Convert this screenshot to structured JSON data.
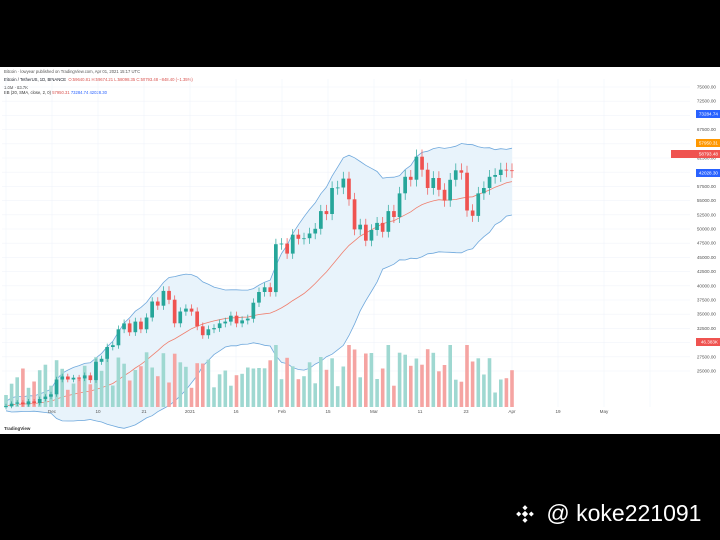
{
  "header": {
    "line1": "Bitcoin · lowyear published on TradingView.com, Apr 01, 2021 15:17 UTC",
    "line2_symbol": "Bitcoin / TetherUS, 1D, BINANCE",
    "line2_ohlc": "O:59640.81  H:59674.21  L:58098.35  C:58793.48  −848.40 (−1.35%)",
    "line2b": "1.0M · 83.7K",
    "line3_label": "BB (20, SMA, close, 2, 0)",
    "line3_basis": "57950.31",
    "line3_upper": "73284.74",
    "line3_lower": "42028.30"
  },
  "axis": {
    "y_ticks": [
      "75000.00",
      "72500.00",
      "70000.00",
      "67500.00",
      "65000.00",
      "62500.00",
      "60000.00",
      "57500.00",
      "55000.00",
      "52500.00",
      "50000.00",
      "47500.00",
      "45000.00",
      "42500.00",
      "40000.00",
      "37500.00",
      "35000.00",
      "32500.00",
      "30000.00",
      "27500.00",
      "25000.00"
    ],
    "x_ticks": [
      "",
      "Dec",
      "10",
      "21",
      "2021",
      "16",
      "Feb",
      "15",
      "Mar",
      "11",
      "23",
      "Apr",
      "19",
      "May",
      ""
    ]
  },
  "price_tags": [
    {
      "text": "73284.74",
      "color": "#2962ff"
    },
    {
      "text": "57950.31",
      "color": "#ff9800"
    },
    {
      "text": "58793.48",
      "color": "#ef5350"
    },
    {
      "text": "42028.30",
      "color": "#2962ff"
    },
    {
      "text": "46.383K",
      "color": "#ef5350"
    }
  ],
  "footer": {
    "logo": "TradingView"
  },
  "watermark": {
    "handle": "@ koke221091"
  },
  "colors": {
    "up": "#26a69a",
    "down": "#ef5350",
    "vol_up": "#9fd8d1",
    "vol_down": "#f5a4a2",
    "band": "#6fa8dc",
    "band_fill": "#e8f3fb",
    "basis": "#ef7f6e"
  },
  "chart_data": {
    "type": "candlestick",
    "series_name": "BTCUSDT 1D",
    "ylim": [
      25000,
      77500
    ],
    "approx_closes": [
      19000,
      19400,
      19600,
      19300,
      19800,
      19500,
      20200,
      20600,
      21000,
      23500,
      24000,
      23500,
      23800,
      23700,
      24200,
      23400,
      26500,
      27000,
      29000,
      29300,
      32000,
      33000,
      31500,
      33300,
      32000,
      34000,
      36700,
      36000,
      38500,
      37000,
      33000,
      35000,
      35500,
      35000,
      32500,
      31000,
      32000,
      32200,
      33000,
      33300,
      34300,
      33000,
      33500,
      33800,
      36500,
      38300,
      39100,
      38300,
      46400,
      46500,
      44800,
      48000,
      47300,
      47400,
      48200,
      49000,
      52000,
      51500,
      55900,
      56000,
      57500,
      54000,
      48900,
      49700,
      47000,
      48800,
      50000,
      48500,
      52000,
      51000,
      55000,
      57800,
      57300,
      61200,
      59000,
      55900,
      57600,
      55600,
      53800,
      57300,
      58900,
      58500,
      52100,
      51200,
      55000,
      55900,
      57800,
      58100,
      59000,
      58900,
      58800
    ]
  }
}
